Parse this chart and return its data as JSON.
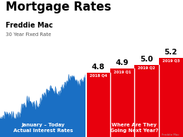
{
  "title": "Mortgage Rates",
  "subtitle1": "Freddie Mac",
  "subtitle2": "30 Year Fixed Rate",
  "bg_color": "#ffffff",
  "bar_labels": [
    "2018 Q4",
    "2019 Q1",
    "2019 Q2",
    "2019 Q3"
  ],
  "bar_values": [
    4.8,
    4.9,
    5.0,
    5.2
  ],
  "bar_color": "#e8000d",
  "area_color": "#1a6fc4",
  "left_label_line1": "January – Today",
  "left_label_line2": "Actual Interest Rates",
  "right_label_line1": "Where Are They",
  "right_label_line2": "Going Next Year?",
  "label_color_left": "#ffffff",
  "label_color_right": "#ffffff",
  "source_text": "Freddie Mac",
  "value_fontsize": 7.5,
  "quarter_fontsize": 3.8,
  "title_fontsize": 12,
  "subtitle1_fontsize": 7,
  "subtitle2_fontsize": 5
}
